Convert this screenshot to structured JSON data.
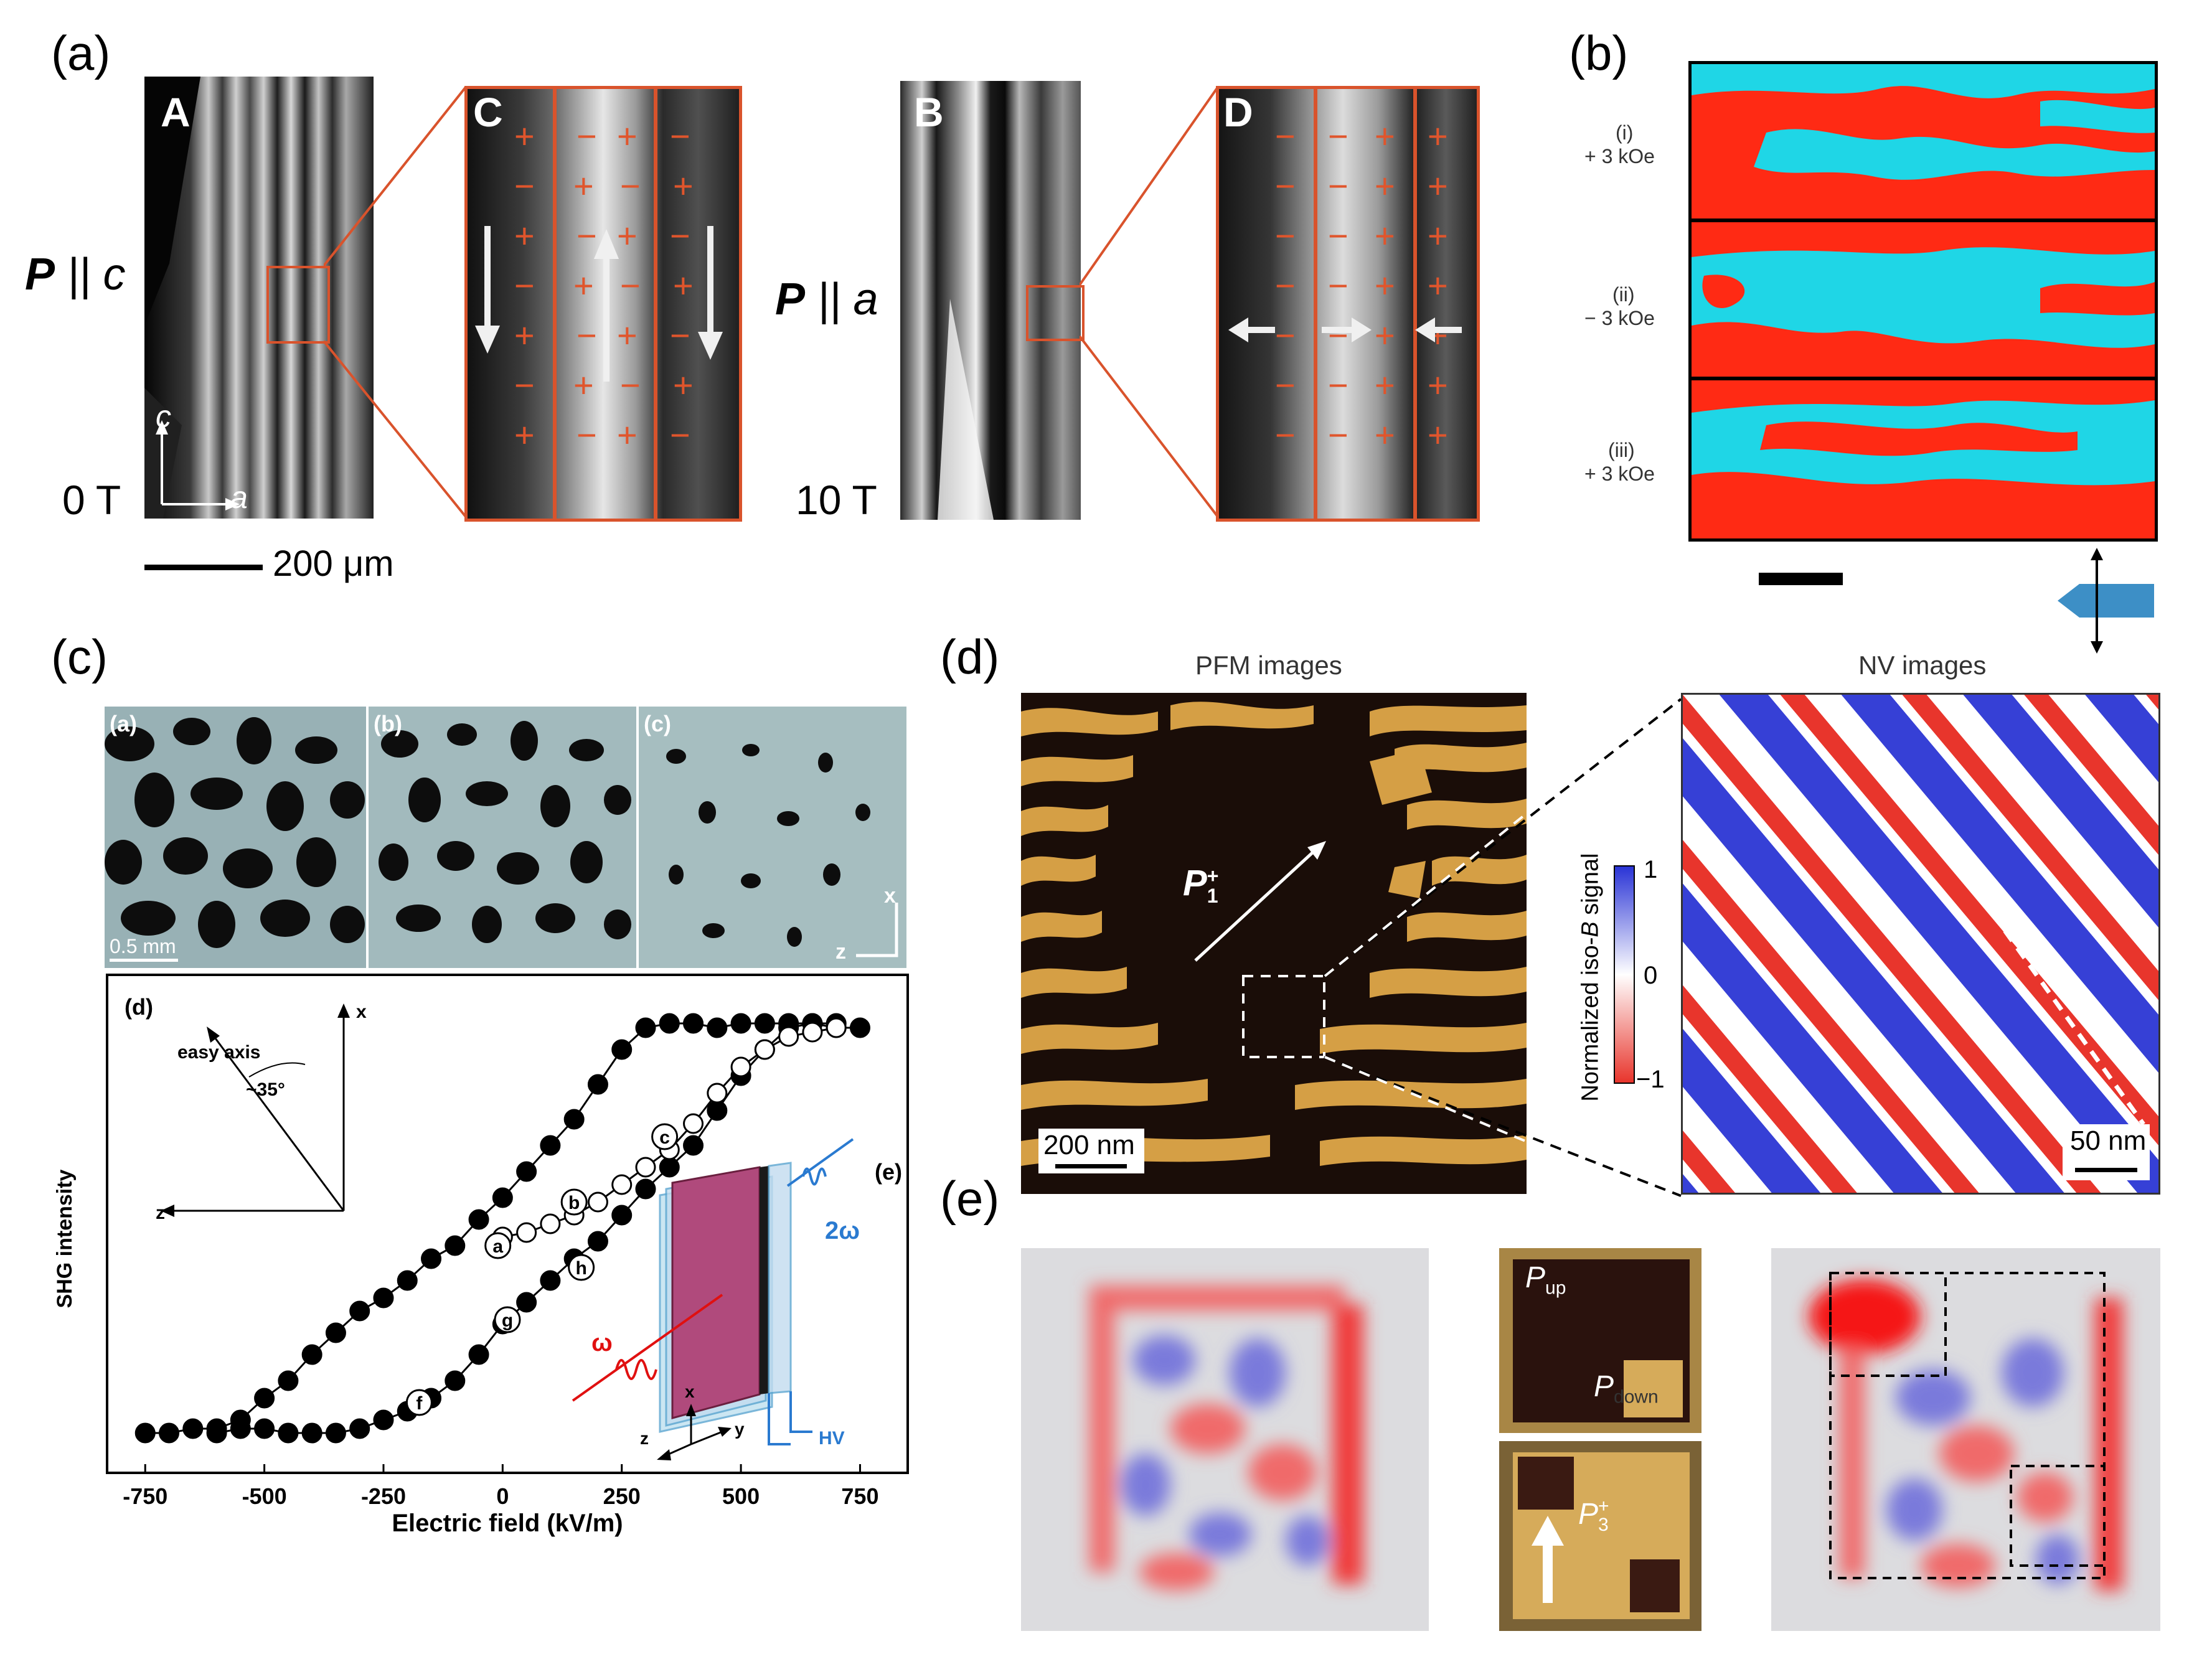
{
  "panel_a": {
    "label": "(a)",
    "img_A_letter": "A",
    "img_B_letter": "B",
    "img_C_letter": "C",
    "img_D_letter": "D",
    "pc_label_P": "P",
    "pc_label_rest": "|| c",
    "pa_label_P": "P",
    "pa_label_rest": "|| a",
    "field_0": "0 T",
    "field_10": "10 T",
    "axis_c": "c",
    "axis_a": "a",
    "scale_bar": "200 μm",
    "accent_color": "#d9532c"
  },
  "panel_b": {
    "label": "(b)",
    "rows": [
      {
        "roman": "(i)",
        "field": "+ 3 kOe"
      },
      {
        "roman": "(ii)",
        "field": "− 3 kOe"
      },
      {
        "roman": "(iii)",
        "field": "+ 3 kOe"
      }
    ],
    "colors": {
      "red": "#ff2a14",
      "cyan": "#1fd6e6",
      "arrow": "#3d8fc6"
    }
  },
  "panel_c": {
    "label": "(c)",
    "sub_a": "(a)",
    "sub_b": "(b)",
    "sub_c": "(c)",
    "scale": "0.5 mm",
    "axis_x": "x",
    "axis_z": "z",
    "sub_d": "(d)",
    "sub_e": "(e)",
    "easy_axis": "easy axis",
    "angle": "~35°",
    "inset_x": "x",
    "inset_z": "z",
    "beam_omega": "ω",
    "beam_2omega": "2ω",
    "hv": "HV",
    "coord_x": "x",
    "coord_y": "y",
    "coord_z": "z",
    "point_labels": [
      "a",
      "b",
      "c",
      "f",
      "g",
      "h"
    ]
  },
  "chart_data": {
    "type": "scatter",
    "title": "",
    "xlabel": "Electric field (kV/m)",
    "ylabel": "SHG intensity",
    "xlim": [
      -830,
      850
    ],
    "ylim": [
      0,
      1.0
    ],
    "x_ticks": [
      "-750",
      "-500",
      "-250",
      "0",
      "250",
      "500",
      "750"
    ],
    "x_tick_values": [
      -750,
      -500,
      -250,
      0,
      250,
      500,
      750
    ],
    "series": [
      {
        "marker": "filled",
        "x": [
          -750,
          -700,
          -650,
          -600,
          -550,
          -500,
          -450,
          -400,
          -350,
          -300,
          -250,
          -200,
          -150,
          -100,
          -50,
          0,
          50,
          100,
          150,
          200,
          250,
          300,
          350,
          400,
          450,
          500,
          550,
          600,
          650,
          700,
          750
        ],
        "y": [
          0.02,
          0.02,
          0.03,
          0.03,
          0.05,
          0.1,
          0.14,
          0.2,
          0.25,
          0.3,
          0.33,
          0.37,
          0.42,
          0.45,
          0.51,
          0.56,
          0.62,
          0.68,
          0.74,
          0.82,
          0.9,
          0.95,
          0.96,
          0.96,
          0.95,
          0.96,
          0.96,
          0.96,
          0.96,
          0.95,
          0.95
        ]
      },
      {
        "marker": "filled",
        "x": [
          -600,
          -550,
          -500,
          -450,
          -400,
          -350,
          -300,
          -250,
          -200,
          -150,
          -100,
          -50,
          0,
          50,
          100,
          150,
          200,
          250,
          300,
          350,
          400,
          450,
          500,
          550,
          600,
          650,
          700
        ],
        "y": [
          0.02,
          0.03,
          0.03,
          0.02,
          0.02,
          0.02,
          0.03,
          0.05,
          0.07,
          0.1,
          0.14,
          0.2,
          0.27,
          0.32,
          0.37,
          0.42,
          0.46,
          0.52,
          0.58,
          0.63,
          0.68,
          0.76,
          0.84,
          0.9,
          0.95,
          0.96,
          0.96
        ]
      },
      {
        "marker": "open",
        "x": [
          0,
          50,
          100,
          150,
          200,
          250,
          300,
          350,
          400,
          450,
          500,
          550,
          600,
          650,
          700
        ],
        "y": [
          0.47,
          0.48,
          0.5,
          0.52,
          0.55,
          0.59,
          0.63,
          0.67,
          0.73,
          0.8,
          0.86,
          0.9,
          0.93,
          0.94,
          0.95
        ]
      }
    ]
  },
  "panel_d": {
    "label": "(d)",
    "pfm_title": "PFM images",
    "nv_title": "NV images",
    "p_vec": "P",
    "p_sup": "+",
    "p_sub": "1",
    "pfm_scale": "200 nm",
    "nv_scale": "50 nm",
    "colorbar_label_pre": "Normalized iso-",
    "colorbar_label_B": "B",
    "colorbar_label_post": " signal",
    "colorbar_ticks": [
      "1",
      "0",
      "−1"
    ],
    "colors": {
      "tan": "#d59f45",
      "dark": "#1a0d08",
      "red": "#e8352c",
      "blue": "#3640d6"
    }
  },
  "panel_e": {
    "label": "(e)",
    "p_up_main": "P",
    "p_up_sub": "up",
    "p_down_main": "P",
    "p_down_sub": "down",
    "p3_main": "P",
    "p3_sub": "3",
    "p3_sup": "+"
  }
}
